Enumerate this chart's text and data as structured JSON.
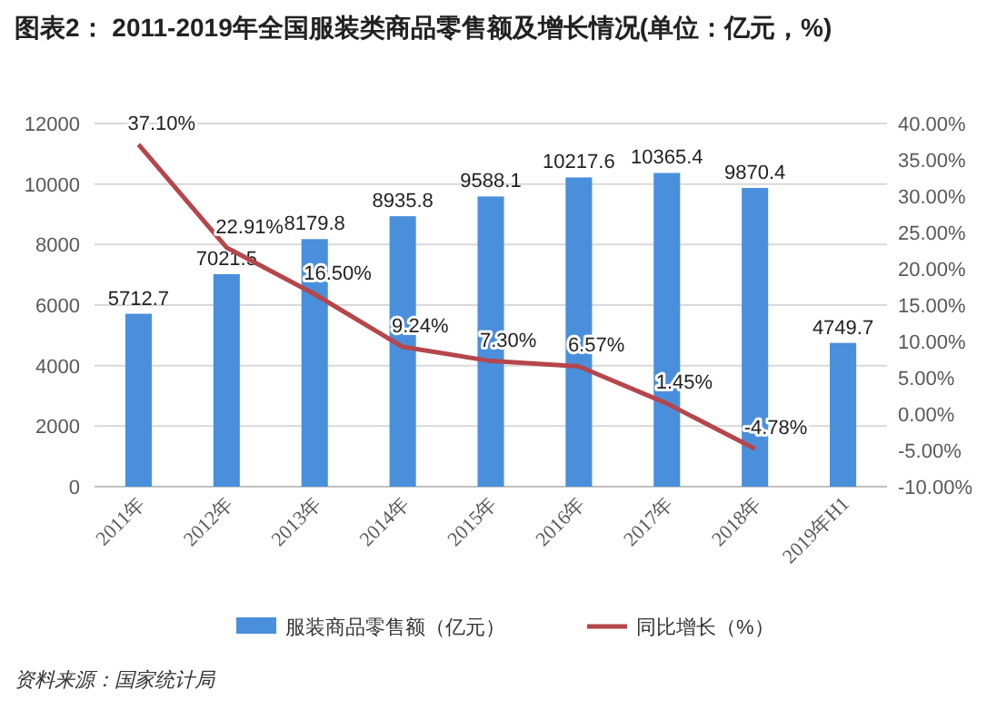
{
  "chart_data": {
    "type": "bar",
    "title": "图表2： 2011-2019年全国服装类商品零售额及增长情况(单位：亿元，%)",
    "categories": [
      "2011年",
      "2012年",
      "2013年",
      "2014年",
      "2015年",
      "2016年",
      "2017年",
      "2018年",
      "2019年H1"
    ],
    "series": [
      {
        "name": "服装商品零售额（亿元）",
        "color": "#4a8fdc",
        "values": [
          5712.7,
          7021.5,
          8179.8,
          8935.8,
          9588.1,
          10217.6,
          10365.4,
          9870.4,
          4749.7
        ]
      },
      {
        "name": "同比增长（%）",
        "type": "line",
        "axis": "y2",
        "color": "#b5464b",
        "values": [
          37.1,
          22.91,
          16.5,
          9.24,
          7.3,
          6.57,
          1.45,
          -4.78,
          null
        ],
        "value_labels": [
          "37.10%",
          "22.91%",
          "16.50%",
          "9.24%",
          "7.30%",
          "6.57%",
          "1.45%",
          "-4.78%",
          null
        ]
      }
    ],
    "ylim": [
      0,
      12000
    ],
    "yticks": [
      0,
      2000,
      4000,
      6000,
      8000,
      10000,
      12000
    ],
    "y2lim": [
      -10,
      40
    ],
    "y2ticks": [
      {
        "value": -10,
        "label": "-10.00%"
      },
      {
        "value": -5,
        "label": "-5.00%"
      },
      {
        "value": 0,
        "label": "0.00%"
      },
      {
        "value": 5,
        "label": "5.00%"
      },
      {
        "value": 10,
        "label": "10.00%"
      },
      {
        "value": 15,
        "label": "15.00%"
      },
      {
        "value": 20,
        "label": "20.00%"
      },
      {
        "value": 25,
        "label": "25.00%"
      },
      {
        "value": 30,
        "label": "30.00%"
      },
      {
        "value": 35,
        "label": "35.00%"
      },
      {
        "value": 40,
        "label": "40.00%"
      }
    ],
    "grid": "y",
    "legend": "bottom",
    "data_labels": true,
    "annotations": [
      "资料来源：国家统计局"
    ]
  }
}
